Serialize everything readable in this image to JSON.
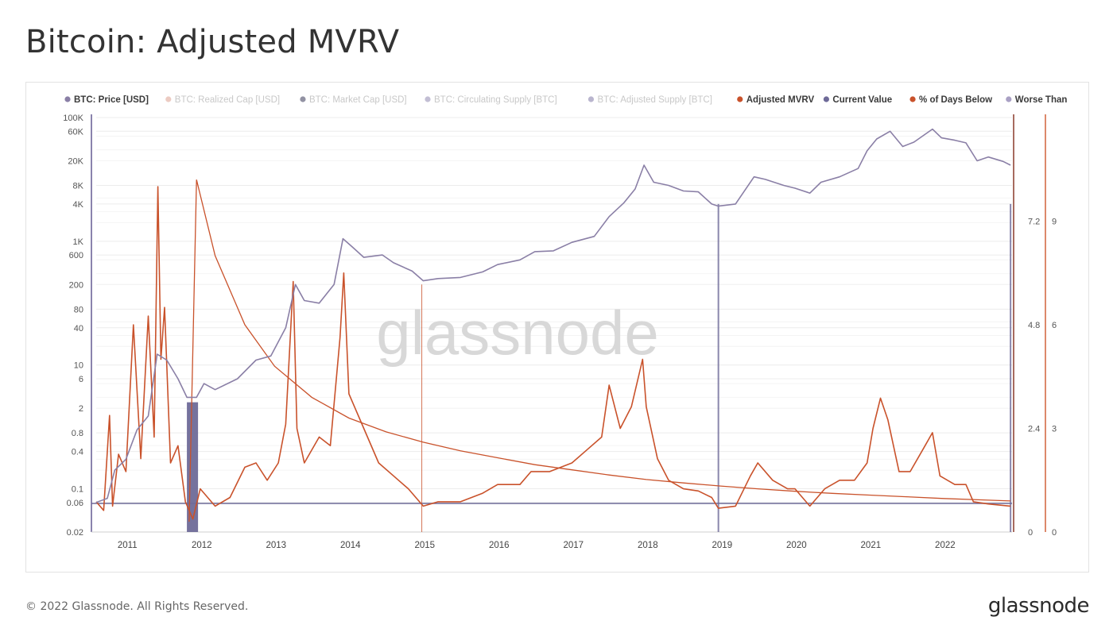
{
  "page": {
    "title": "Bitcoin: Adjusted MVRV",
    "footer": "© 2022 Glassnode. All Rights Reserved.",
    "brand": "glassnode",
    "watermark": "glassnode"
  },
  "chart_data": {
    "type": "line",
    "title": "Bitcoin: Adjusted MVRV",
    "legend_position": "top",
    "legend": [
      {
        "label": "BTC: Price [USD]",
        "color": "#8a7fa6",
        "active": true
      },
      {
        "label": "BTC: Realized Cap [USD]",
        "color": "#e0a89a",
        "active": false
      },
      {
        "label": "BTC: Market Cap [USD]",
        "color": "#4a4a66",
        "active": false
      },
      {
        "label": "BTC: Circulating Supply [BTC]",
        "color": "#9a92b8",
        "active": false
      },
      {
        "label": "BTC: Adjusted Supply [BTC]",
        "color": "#8a83ad",
        "active": false
      },
      {
        "label": "Adjusted MVRV",
        "color": "#c9522b",
        "active": true
      },
      {
        "label": "Current Value",
        "color": "#6e6a98",
        "active": true
      },
      {
        "label": "% of Days Below",
        "color": "#c9522b",
        "active": true
      },
      {
        "label": "Worse Than",
        "color": "#a9a0c4",
        "active": true
      }
    ],
    "x_ticks": [
      "2011",
      "2012",
      "2013",
      "2014",
      "2015",
      "2016",
      "2017",
      "2018",
      "2019",
      "2020",
      "2021",
      "2022"
    ],
    "x_range": [
      2010.6,
      2022.92
    ],
    "y_left": {
      "scale": "log",
      "ticks": [
        "100K",
        "60K",
        "20K",
        "8K",
        "4K",
        "1K",
        "600",
        "200",
        "80",
        "40",
        "10",
        "6",
        "2",
        "0.8",
        "0.4",
        "0.1",
        "0.06",
        "0.02"
      ],
      "range": [
        0.02,
        100000
      ]
    },
    "y_right1": {
      "ticks": [
        "7.2",
        "4.8",
        "2.4",
        "0"
      ],
      "range": [
        0,
        9.6
      ]
    },
    "y_right2": {
      "ticks": [
        "9",
        "6",
        "3",
        "0"
      ],
      "range": [
        0,
        12
      ]
    },
    "series": [
      {
        "name": "BTC: Price [USD]",
        "axis": "left",
        "points": [
          [
            2010.6,
            0.06
          ],
          [
            2010.75,
            0.07
          ],
          [
            2010.85,
            0.2
          ],
          [
            2011.0,
            0.3
          ],
          [
            2011.15,
            0.9
          ],
          [
            2011.3,
            1.5
          ],
          [
            2011.42,
            15
          ],
          [
            2011.55,
            12
          ],
          [
            2011.7,
            6
          ],
          [
            2011.82,
            3
          ],
          [
            2011.95,
            3
          ],
          [
            2012.05,
            5
          ],
          [
            2012.2,
            4
          ],
          [
            2012.5,
            6
          ],
          [
            2012.75,
            12
          ],
          [
            2012.95,
            14
          ],
          [
            2013.15,
            40
          ],
          [
            2013.28,
            200
          ],
          [
            2013.4,
            110
          ],
          [
            2013.6,
            100
          ],
          [
            2013.8,
            200
          ],
          [
            2013.92,
            1100
          ],
          [
            2014.05,
            800
          ],
          [
            2014.2,
            550
          ],
          [
            2014.45,
            600
          ],
          [
            2014.6,
            450
          ],
          [
            2014.85,
            330
          ],
          [
            2015.0,
            230
          ],
          [
            2015.2,
            250
          ],
          [
            2015.5,
            260
          ],
          [
            2015.8,
            320
          ],
          [
            2016.0,
            420
          ],
          [
            2016.3,
            500
          ],
          [
            2016.5,
            680
          ],
          [
            2016.75,
            700
          ],
          [
            2017.0,
            960
          ],
          [
            2017.3,
            1200
          ],
          [
            2017.5,
            2500
          ],
          [
            2017.7,
            4200
          ],
          [
            2017.85,
            7000
          ],
          [
            2017.97,
            17000
          ],
          [
            2018.1,
            9000
          ],
          [
            2018.3,
            8000
          ],
          [
            2018.5,
            6500
          ],
          [
            2018.7,
            6300
          ],
          [
            2018.88,
            4000
          ],
          [
            2018.97,
            3700
          ],
          [
            2019.2,
            4000
          ],
          [
            2019.45,
            11000
          ],
          [
            2019.6,
            10000
          ],
          [
            2019.85,
            8000
          ],
          [
            2020.0,
            7200
          ],
          [
            2020.2,
            6000
          ],
          [
            2020.35,
            9000
          ],
          [
            2020.6,
            11000
          ],
          [
            2020.85,
            15000
          ],
          [
            2020.97,
            29000
          ],
          [
            2021.1,
            45000
          ],
          [
            2021.28,
            60000
          ],
          [
            2021.45,
            34000
          ],
          [
            2021.6,
            40000
          ],
          [
            2021.85,
            65000
          ],
          [
            2021.97,
            47000
          ],
          [
            2022.15,
            43000
          ],
          [
            2022.3,
            39000
          ],
          [
            2022.45,
            20000
          ],
          [
            2022.6,
            23000
          ],
          [
            2022.8,
            19500
          ],
          [
            2022.9,
            17000
          ]
        ]
      },
      {
        "name": "Adjusted MVRV",
        "axis": "right1",
        "points": [
          [
            2010.6,
            0.7
          ],
          [
            2010.7,
            0.5
          ],
          [
            2010.78,
            2.7
          ],
          [
            2010.82,
            0.6
          ],
          [
            2010.9,
            1.8
          ],
          [
            2011.0,
            1.4
          ],
          [
            2011.1,
            4.8
          ],
          [
            2011.2,
            1.7
          ],
          [
            2011.3,
            5.0
          ],
          [
            2011.38,
            2.2
          ],
          [
            2011.43,
            8.0
          ],
          [
            2011.47,
            4.0
          ],
          [
            2011.52,
            5.2
          ],
          [
            2011.6,
            1.6
          ],
          [
            2011.7,
            2.0
          ],
          [
            2011.8,
            0.7
          ],
          [
            2011.9,
            0.3
          ],
          [
            2012.0,
            1.0
          ],
          [
            2012.2,
            0.6
          ],
          [
            2012.4,
            0.8
          ],
          [
            2012.6,
            1.5
          ],
          [
            2012.75,
            1.6
          ],
          [
            2012.9,
            1.2
          ],
          [
            2013.05,
            1.6
          ],
          [
            2013.15,
            2.5
          ],
          [
            2013.25,
            5.8
          ],
          [
            2013.3,
            2.4
          ],
          [
            2013.4,
            1.6
          ],
          [
            2013.6,
            2.2
          ],
          [
            2013.75,
            2.0
          ],
          [
            2013.88,
            4.5
          ],
          [
            2013.93,
            6.0
          ],
          [
            2014.0,
            3.2
          ],
          [
            2014.2,
            2.4
          ],
          [
            2014.4,
            1.6
          ],
          [
            2014.6,
            1.3
          ],
          [
            2014.8,
            1.0
          ],
          [
            2015.0,
            0.6
          ],
          [
            2015.2,
            0.7
          ],
          [
            2015.5,
            0.7
          ],
          [
            2015.8,
            0.9
          ],
          [
            2016.0,
            1.1
          ],
          [
            2016.3,
            1.1
          ],
          [
            2016.45,
            1.4
          ],
          [
            2016.7,
            1.4
          ],
          [
            2017.0,
            1.6
          ],
          [
            2017.2,
            1.9
          ],
          [
            2017.4,
            2.2
          ],
          [
            2017.5,
            3.4
          ],
          [
            2017.65,
            2.4
          ],
          [
            2017.8,
            2.9
          ],
          [
            2017.95,
            4.0
          ],
          [
            2018.0,
            2.9
          ],
          [
            2018.15,
            1.7
          ],
          [
            2018.3,
            1.2
          ],
          [
            2018.5,
            1.0
          ],
          [
            2018.7,
            0.95
          ],
          [
            2018.88,
            0.8
          ],
          [
            2018.97,
            0.55
          ],
          [
            2019.2,
            0.6
          ],
          [
            2019.4,
            1.3
          ],
          [
            2019.5,
            1.6
          ],
          [
            2019.7,
            1.2
          ],
          [
            2019.9,
            1.0
          ],
          [
            2020.0,
            1.0
          ],
          [
            2020.2,
            0.6
          ],
          [
            2020.4,
            1.0
          ],
          [
            2020.6,
            1.2
          ],
          [
            2020.8,
            1.2
          ],
          [
            2020.97,
            1.6
          ],
          [
            2021.05,
            2.4
          ],
          [
            2021.15,
            3.1
          ],
          [
            2021.25,
            2.6
          ],
          [
            2021.4,
            1.4
          ],
          [
            2021.55,
            1.4
          ],
          [
            2021.75,
            2.0
          ],
          [
            2021.85,
            2.3
          ],
          [
            2021.95,
            1.3
          ],
          [
            2022.15,
            1.1
          ],
          [
            2022.3,
            1.1
          ],
          [
            2022.4,
            0.7
          ],
          [
            2022.6,
            0.65
          ],
          [
            2022.9,
            0.6
          ]
        ]
      },
      {
        "name": "% of Days Below",
        "axis": "right2",
        "points": [
          [
            2011.85,
            0.3
          ],
          [
            2011.95,
            10.2
          ],
          [
            2012.2,
            8.0
          ],
          [
            2012.6,
            6.0
          ],
          [
            2013.0,
            4.8
          ],
          [
            2013.5,
            3.9
          ],
          [
            2014.0,
            3.3
          ],
          [
            2014.5,
            2.9
          ],
          [
            2015.0,
            2.6
          ],
          [
            2015.5,
            2.35
          ],
          [
            2016.0,
            2.15
          ],
          [
            2016.5,
            1.95
          ],
          [
            2017.0,
            1.8
          ],
          [
            2017.5,
            1.65
          ],
          [
            2018.0,
            1.52
          ],
          [
            2018.5,
            1.42
          ],
          [
            2019.0,
            1.33
          ],
          [
            2019.5,
            1.25
          ],
          [
            2020.0,
            1.18
          ],
          [
            2020.5,
            1.12
          ],
          [
            2021.0,
            1.07
          ],
          [
            2021.5,
            1.02
          ],
          [
            2022.0,
            0.97
          ],
          [
            2022.5,
            0.93
          ],
          [
            2022.9,
            0.9
          ]
        ]
      },
      {
        "name": "Current Value",
        "axis": "left",
        "value": 0.058
      }
    ],
    "annotations": [
      {
        "type": "vline",
        "x": 2014.98,
        "series": "% of Days Below"
      },
      {
        "type": "vline",
        "x": 2018.97,
        "series": "Current Value"
      },
      {
        "type": "vline",
        "x": 2022.9,
        "series": "Current Value"
      },
      {
        "type": "band",
        "x_from": 2011.82,
        "x_to": 2011.97,
        "series": "Current Value"
      }
    ],
    "grid": "horizontal"
  }
}
